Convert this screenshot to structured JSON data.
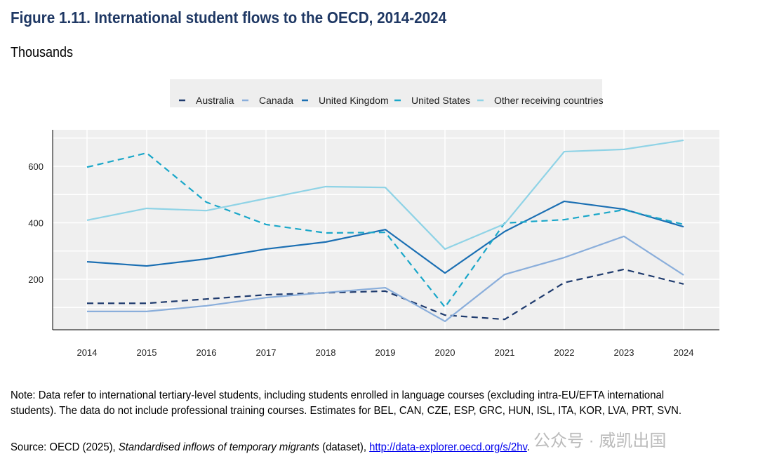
{
  "title": "Figure 1.11. International student flows to the OECD, 2014-2024",
  "subtitle": "Thousands",
  "chart_data": {
    "type": "line",
    "title": "Figure 1.11. International student flows to the OECD, 2014-2024",
    "ylabel": "Thousands",
    "xlabel": "",
    "x": [
      "2014",
      "2015",
      "2016",
      "2017",
      "2018",
      "2019",
      "2020",
      "2021",
      "2022",
      "2023",
      "2024"
    ],
    "yticks": [
      200,
      400,
      600
    ],
    "ylim": [
      20,
      730
    ],
    "grid": true,
    "legend_position": "top",
    "series": [
      {
        "name": "Australia",
        "color": "#1f3b6e",
        "dashed": true,
        "values": [
          115,
          115,
          130,
          145,
          152,
          158,
          73,
          58,
          188,
          235,
          183
        ]
      },
      {
        "name": "Canada",
        "color": "#8aaedb",
        "dashed": false,
        "values": [
          86,
          86,
          106,
          135,
          153,
          170,
          51,
          217,
          277,
          352,
          215
        ]
      },
      {
        "name": "United Kingdom",
        "color": "#1b6fb3",
        "dashed": false,
        "values": [
          262,
          247,
          272,
          307,
          332,
          376,
          222,
          369,
          476,
          448,
          386
        ]
      },
      {
        "name": "United States",
        "color": "#1aa7c9",
        "dashed": true,
        "values": [
          597,
          647,
          473,
          394,
          364,
          366,
          101,
          399,
          411,
          446,
          394
        ]
      },
      {
        "name": "Other receiving countries",
        "color": "#8fd3e6",
        "dashed": false,
        "values": [
          409,
          451,
          443,
          486,
          528,
          525,
          307,
          396,
          652,
          660,
          692
        ]
      }
    ]
  },
  "note": "Note: Data refer to international tertiary-level students, including students enrolled in language courses (excluding intra-EU/EFTA international students). The data do not include professional training courses. Estimates for BEL, CAN, CZE, ESP, GRC, HUN, ISL, ITA, KOR, LVA, PRT, SVN.",
  "source": {
    "prefix": "Source: OECD (2025), ",
    "italic": "Standardised inflows of temporary migrants",
    "middle": " (dataset), ",
    "link": "http://data-explorer.oecd.org/s/2hv",
    "suffix": "."
  },
  "watermark": "公众号 · 威凯出国"
}
